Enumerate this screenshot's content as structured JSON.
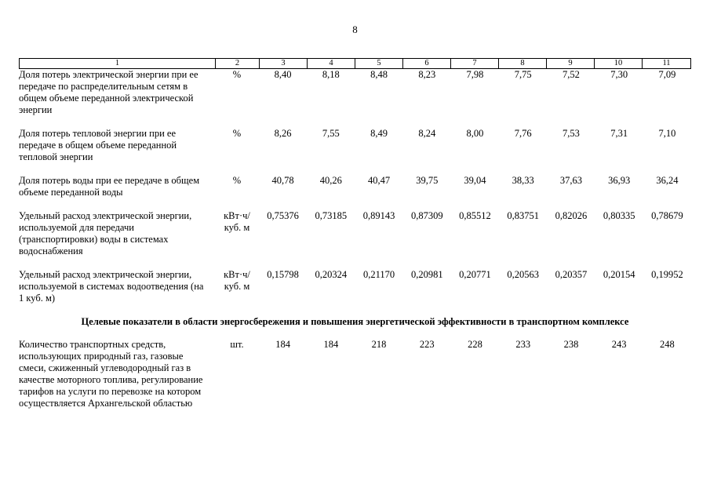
{
  "page_number": "8",
  "table": {
    "header": [
      "1",
      "2",
      "3",
      "4",
      "5",
      "6",
      "7",
      "8",
      "9",
      "10",
      "11"
    ],
    "sections": [
      {
        "heading": "",
        "rows": [
          {
            "indicator": "Доля потерь электрической энергии при ее передаче по распределительным сетям в общем объеме переданной электрической энергии",
            "unit": "%",
            "values": [
              "8,40",
              "8,18",
              "8,48",
              "8,23",
              "7,98",
              "7,75",
              "7,52",
              "7,30",
              "7,09"
            ]
          },
          {
            "indicator": "Доля потерь тепловой энергии при ее передаче в общем объеме переданной тепловой энергии",
            "unit": "%",
            "values": [
              "8,26",
              "7,55",
              "8,49",
              "8,24",
              "8,00",
              "7,76",
              "7,53",
              "7,31",
              "7,10"
            ]
          },
          {
            "indicator": "Доля потерь воды при ее передаче в общем объеме переданной воды",
            "unit": "%",
            "values": [
              "40,78",
              "40,26",
              "40,47",
              "39,75",
              "39,04",
              "38,33",
              "37,63",
              "36,93",
              "36,24"
            ]
          },
          {
            "indicator": "Удельный расход электрической энергии, используемой для передачи (транспортировки) воды в системах водоснабжения",
            "unit": "кВт·ч/\nкуб. м",
            "values": [
              "0,75376",
              "0,73185",
              "0,89143",
              "0,87309",
              "0,85512",
              "0,83751",
              "0,82026",
              "0,80335",
              "0,78679"
            ]
          },
          {
            "indicator": "Удельный расход электрической энергии, используемой в системах водоотведения (на 1 куб. м)",
            "unit": "кВт·ч/\nкуб. м",
            "values": [
              "0,15798",
              "0,20324",
              "0,21170",
              "0,20981",
              "0,20771",
              "0,20563",
              "0,20357",
              "0,20154",
              "0,19952"
            ]
          }
        ]
      },
      {
        "heading": "Целевые показатели в области энергосбережения и повышения энергетической эффективности в транспортном комплексе",
        "rows": [
          {
            "indicator": "Количество транспортных средств, использующих природный газ, газовые смеси, сжиженный углеводородный газ в качестве моторного топлива, регулирование тарифов на услуги по перевозке на котором осуществляется Архангельской областью",
            "unit": "шт.",
            "values": [
              "184",
              "184",
              "218",
              "223",
              "228",
              "233",
              "238",
              "243",
              "248"
            ]
          }
        ]
      }
    ]
  }
}
